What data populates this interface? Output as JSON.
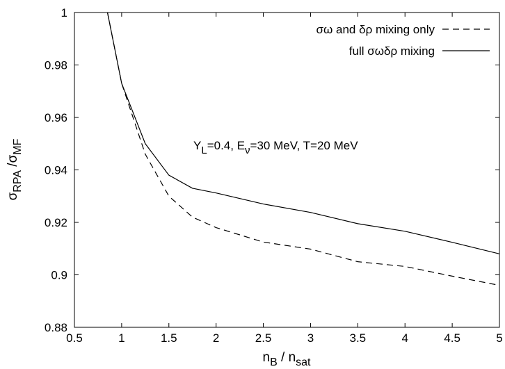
{
  "chart_data": {
    "type": "line",
    "title": "",
    "xlabel": {
      "main": "n",
      "sub1": "B",
      "sep": " / n",
      "sub2": "sat"
    },
    "ylabel": {
      "main": "σ",
      "sub1": "RPA",
      "sep": " /σ",
      "sub2": "MF"
    },
    "xlim": [
      0.5,
      5
    ],
    "ylim": [
      0.88,
      1
    ],
    "x_ticks": [
      0.5,
      1,
      1.5,
      2,
      2.5,
      3,
      3.5,
      4,
      4.5,
      5
    ],
    "x_tick_labels": [
      "0.5",
      "1",
      "1.5",
      "2",
      "2.5",
      "3",
      "3.5",
      "4",
      "4.5",
      "5"
    ],
    "y_ticks": [
      0.88,
      0.9,
      0.92,
      0.94,
      0.96,
      0.98,
      1
    ],
    "y_tick_labels": [
      "0.88",
      "0.9",
      "0.92",
      "0.94",
      "0.96",
      "0.98",
      "1"
    ],
    "grid": false,
    "legend_position": "top-right",
    "annotation": "Y_L=0.4, E_ν=30 MeV, T=20 MeV",
    "annotation_parts": [
      "Y",
      "L",
      "=0.4, E",
      "ν",
      "=30 MeV, T=20 MeV"
    ],
    "series": [
      {
        "name": "σω and δρ mixing only",
        "style": "dashed",
        "color": "#000000",
        "x": [
          0.85,
          1.0,
          1.25,
          1.5,
          1.75,
          2.0,
          2.5,
          3.0,
          3.5,
          4.0,
          4.5,
          5.0
        ],
        "y": [
          1.0,
          0.973,
          0.946,
          0.93,
          0.922,
          0.918,
          0.9125,
          0.9098,
          0.905,
          0.9032,
          0.8995,
          0.896
        ]
      },
      {
        "name": "full σωδρ mixing",
        "style": "solid",
        "color": "#000000",
        "x": [
          0.85,
          1.0,
          1.25,
          1.5,
          1.75,
          2.0,
          2.5,
          3.0,
          3.5,
          4.0,
          4.5,
          5.0
        ],
        "y": [
          1.0,
          0.973,
          0.95,
          0.938,
          0.933,
          0.9312,
          0.927,
          0.9238,
          0.9195,
          0.9166,
          0.9124,
          0.908
        ]
      }
    ]
  }
}
